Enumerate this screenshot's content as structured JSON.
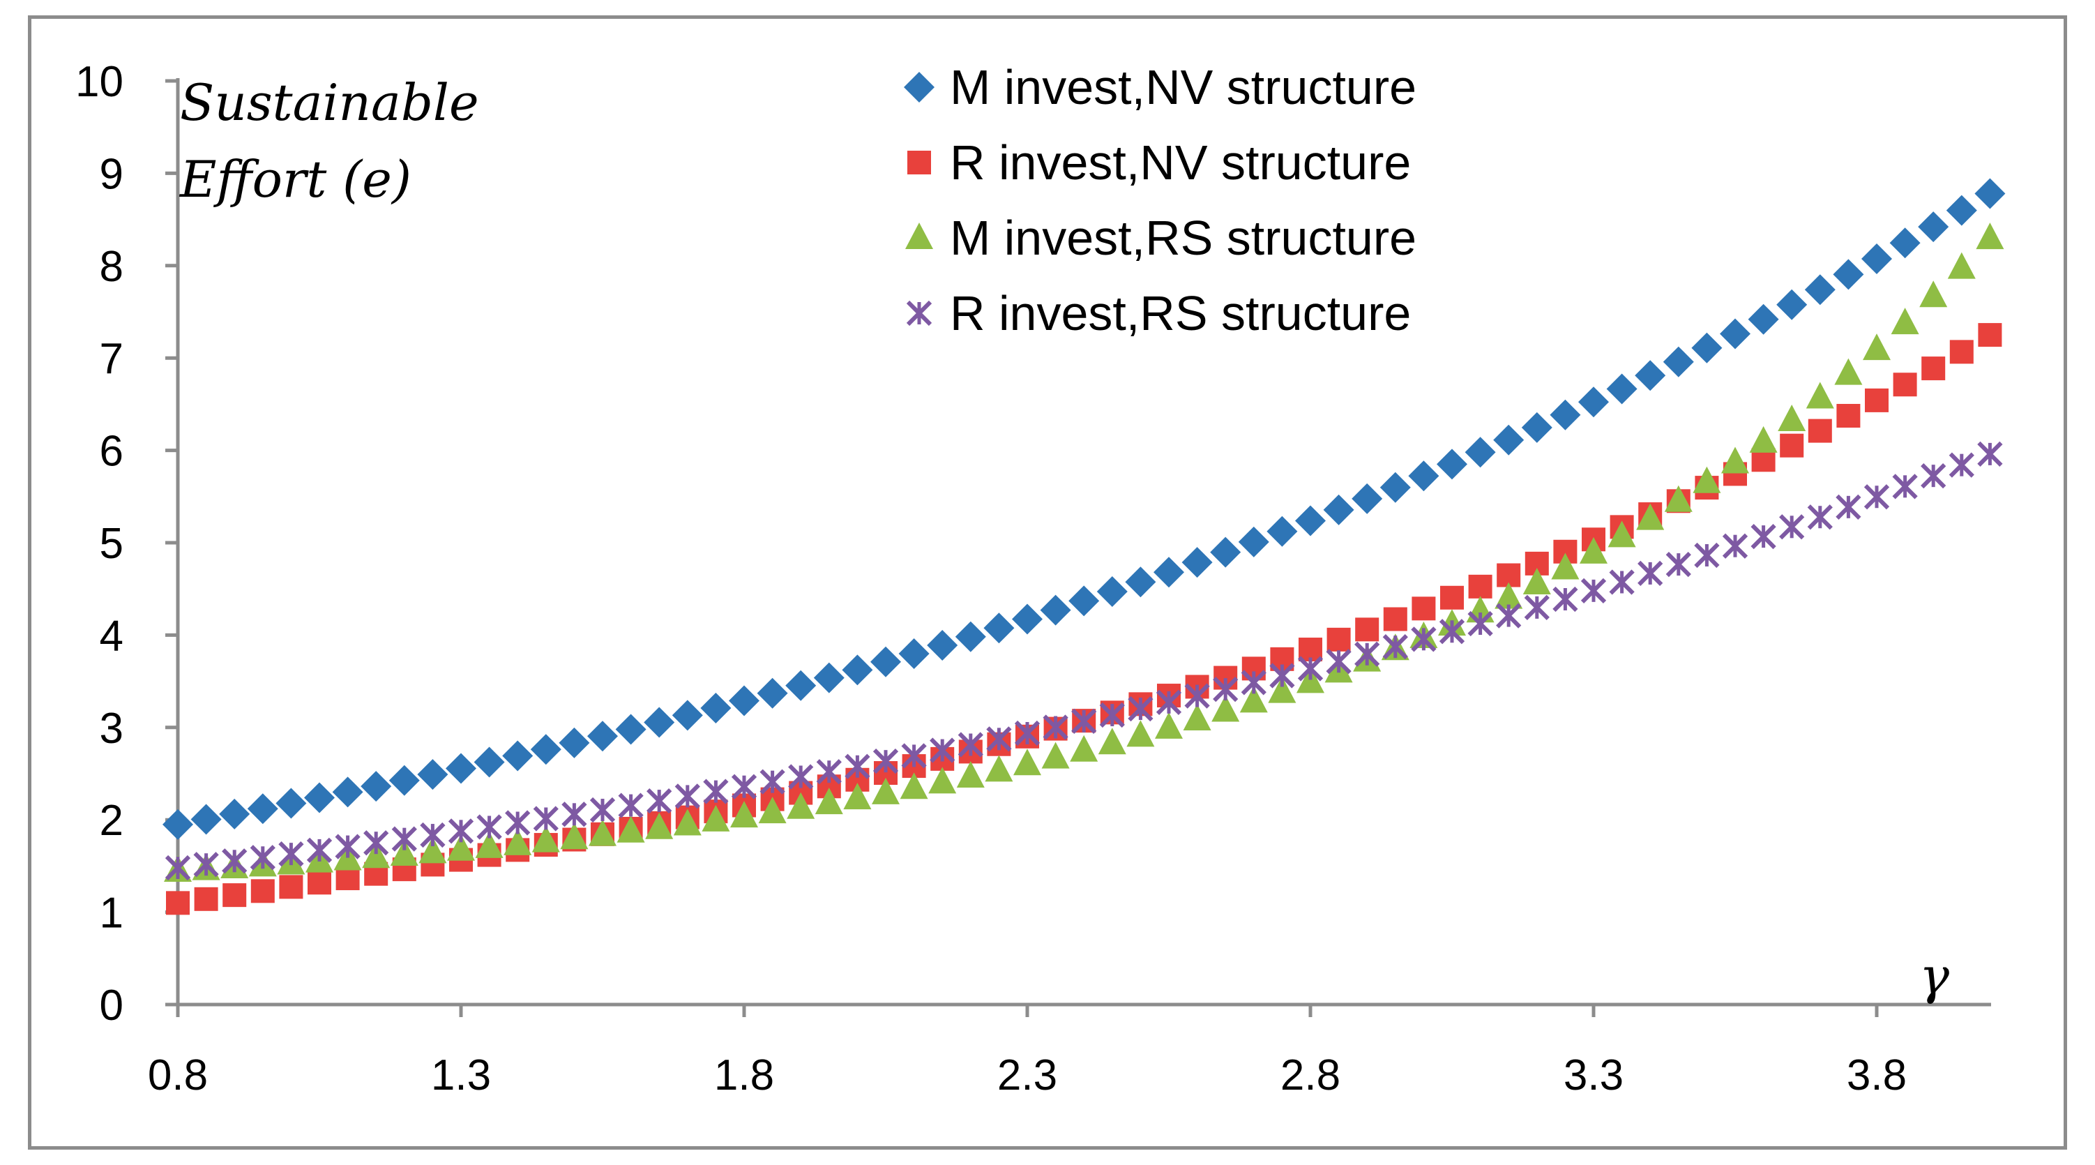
{
  "chart_data": {
    "type": "scatter",
    "title": "",
    "ylabel_line1": "Sustainable",
    "ylabel_line2": "Effort (e)",
    "xlabel": "γ",
    "xlim": [
      0.8,
      4.0
    ],
    "ylim": [
      0,
      10
    ],
    "x_ticks": [
      {
        "value": 0.8,
        "label": "0.8"
      },
      {
        "value": 1.3,
        "label": "1.3"
      },
      {
        "value": 1.8,
        "label": "1.8"
      },
      {
        "value": 2.3,
        "label": "2.3"
      },
      {
        "value": 2.8,
        "label": "2.8"
      },
      {
        "value": 3.3,
        "label": "3.3"
      },
      {
        "value": 3.8,
        "label": "3.8"
      }
    ],
    "y_ticks": [
      {
        "value": 0,
        "label": "0"
      },
      {
        "value": 1,
        "label": "1"
      },
      {
        "value": 2,
        "label": "2"
      },
      {
        "value": 3,
        "label": "3"
      },
      {
        "value": 4,
        "label": "4"
      },
      {
        "value": 5,
        "label": "5"
      },
      {
        "value": 6,
        "label": "6"
      },
      {
        "value": 7,
        "label": "7"
      },
      {
        "value": 8,
        "label": "8"
      },
      {
        "value": 9,
        "label": "9"
      },
      {
        "value": 10,
        "label": "10"
      }
    ],
    "x_start": 0.8,
    "x_step": 0.05,
    "point_count": 65,
    "legend_position": "top-center",
    "series": [
      {
        "name": "M invest,NV structure",
        "marker": "diamond",
        "color": "#2e75b6",
        "y_start": 1.95,
        "y_end": 8.78,
        "curvature": 1.2
      },
      {
        "name": "R invest,NV structure",
        "marker": "square",
        "color": "#e8413c",
        "y_start": 1.1,
        "y_end": 7.25,
        "curvature": 1.5
      },
      {
        "name": "M invest,RS structure",
        "marker": "triangle",
        "color": "#8fbd44",
        "y_start": 1.45,
        "y_end": 8.3,
        "curvature": 2.9
      },
      {
        "name": "R invest,RS structure",
        "marker": "x",
        "color": "#7e59a3",
        "y_start": 1.48,
        "y_end": 5.96,
        "curvature": 1.2
      }
    ]
  }
}
